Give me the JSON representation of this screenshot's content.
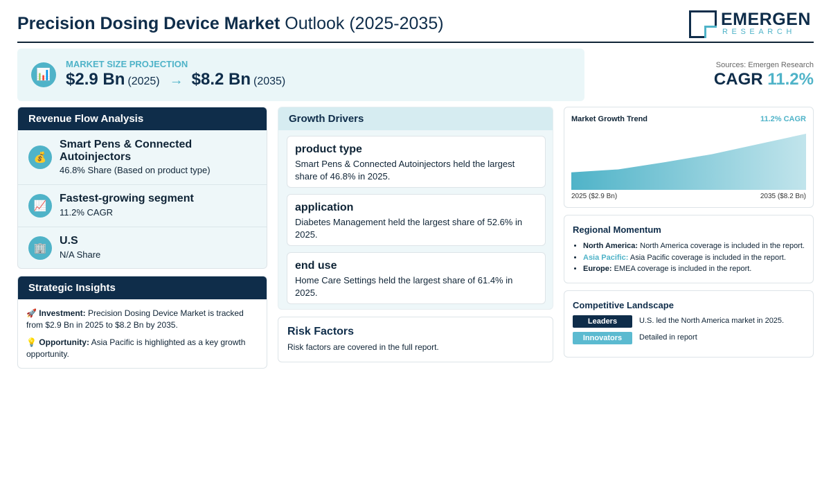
{
  "header": {
    "title_bold": "Precision Dosing Device Market",
    "title_rest": " Outlook (2025-2035)",
    "logo_name": "EMERGEN",
    "logo_sub": "RESEARCH"
  },
  "market_size": {
    "icon": "bar-chart-icon",
    "label": "MARKET SIZE PROJECTION",
    "start_value": "$2.9 Bn",
    "start_year": "(2025)",
    "arrow": "→",
    "end_value": "$8.2 Bn",
    "end_year": "(2035)"
  },
  "sources": "Sources: Emergen Research",
  "cagr": {
    "label": "CAGR",
    "value": "11.2%"
  },
  "revenue_flow": {
    "title": "Revenue Flow Analysis",
    "items": [
      {
        "icon": "money-bag-icon",
        "glyph": "💰",
        "title": "Smart Pens & Connected Autoinjectors",
        "subtitle": "46.8% Share (Based on product type)"
      },
      {
        "icon": "chart-increasing-icon",
        "glyph": "📈",
        "title": "Fastest-growing segment",
        "subtitle": "11.2% CAGR"
      },
      {
        "icon": "office-building-icon",
        "glyph": "🏢",
        "title": "U.S",
        "subtitle": "N/A Share"
      }
    ]
  },
  "strategic_insights": {
    "title": "Strategic Insights",
    "items": [
      {
        "glyph": "🚀",
        "label": "Investment:",
        "text": "Precision Dosing Device Market is tracked from $2.9 Bn in 2025 to $8.2 Bn by 2035."
      },
      {
        "glyph": "💡",
        "label": "Opportunity:",
        "text": "Asia Pacific is highlighted as a key growth opportunity."
      }
    ]
  },
  "growth_drivers": {
    "title": "Growth Drivers",
    "items": [
      {
        "title": "product type",
        "text": "Smart Pens & Connected Autoinjectors held the largest share of 46.8% in 2025."
      },
      {
        "title": "application",
        "text": "Diabetes Management held the largest share of 52.6% in 2025."
      },
      {
        "title": "end use",
        "text": "Home Care Settings held the largest share of 61.4% in 2025."
      }
    ]
  },
  "risk_factors": {
    "title": "Risk Factors",
    "text": "Risk factors are covered in the full report."
  },
  "market_growth_trend": {
    "title": "Market Growth Trend",
    "cagr_label": "11.2% CAGR",
    "start_label": "2025 ($2.9 Bn)",
    "end_label": "2035 ($8.2 Bn)",
    "fill_color": "#4fb3c8"
  },
  "chart_data": {
    "type": "area",
    "title": "Market Growth Trend",
    "x": [
      2025,
      2027,
      2029,
      2031,
      2033,
      2035
    ],
    "values": [
      2.9,
      3.3,
      4.3,
      5.4,
      6.8,
      8.2
    ],
    "ylim": [
      0,
      8.2
    ],
    "xlabel": "",
    "ylabel": "",
    "grid": false
  },
  "regional_momentum": {
    "title": "Regional Momentum",
    "items": [
      {
        "region": "North America:",
        "text": " North America coverage is included in the report.",
        "highlight": false
      },
      {
        "region": "Asia Pacific:",
        "text": " Asia Pacific coverage is included in the report.",
        "highlight": true
      },
      {
        "region": "Europe:",
        "text": " EMEA coverage is included in the report.",
        "highlight": false
      }
    ]
  },
  "competitive_landscape": {
    "title": "Competitive Landscape",
    "items": [
      {
        "badge": "Leaders",
        "text": "U.S. led the North America market in 2025.",
        "style": "dark"
      },
      {
        "badge": "Innovators",
        "text": "Detailed in report",
        "style": "teal"
      }
    ]
  }
}
